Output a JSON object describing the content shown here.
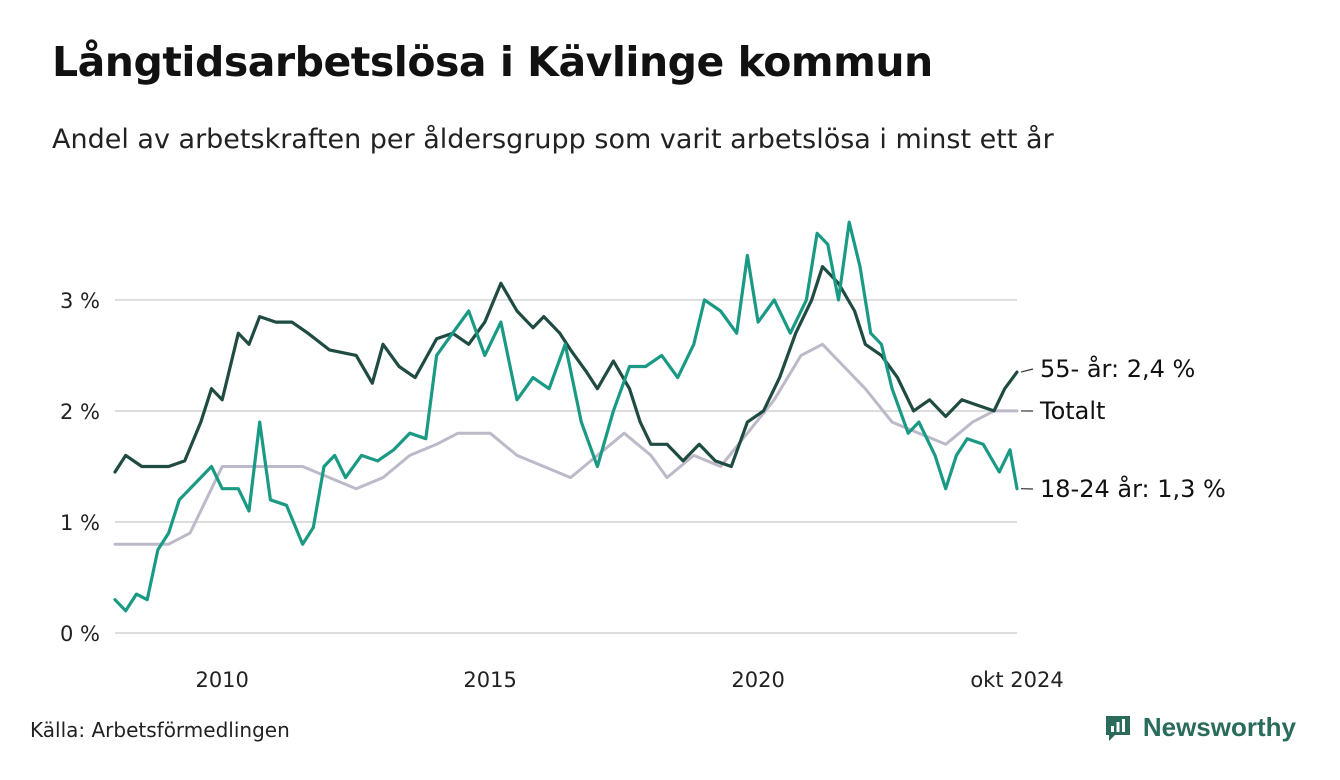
{
  "header": {
    "title": "Långtidsarbetslösa i Kävlinge kommun",
    "subtitle": "Andel av arbetskraften per åldersgrupp som varit arbetslösa i minst ett år"
  },
  "footer": {
    "source": "Källa: Arbetsförmedlingen",
    "brand": "Newsworthy"
  },
  "colors": {
    "age_55": "#1f4b43",
    "age_18_24": "#1a9a85",
    "total": "#bdb9c9",
    "grid": "#dddddd",
    "brand": "#2a6b5c"
  },
  "chart_data": {
    "type": "line",
    "x_unit": "year",
    "xlim": [
      2008.0,
      2024.83
    ],
    "ylim": [
      0,
      3.9
    ],
    "y_ticks": [
      0,
      1,
      2,
      3
    ],
    "y_tick_labels": [
      "0 %",
      "1 %",
      "2 %",
      "3 %"
    ],
    "x_ticks": [
      2010,
      2015,
      2020,
      2024.83
    ],
    "x_tick_labels": [
      "2010",
      "2015",
      "2020",
      "okt 2024"
    ],
    "grid": "horizontal",
    "series": [
      {
        "name": "Totalt",
        "end_label": "Totalt",
        "color_key": "total",
        "points": [
          [
            2008.0,
            0.8
          ],
          [
            2009.0,
            0.8
          ],
          [
            2009.4,
            0.9
          ],
          [
            2009.8,
            1.3
          ],
          [
            2010.0,
            1.5
          ],
          [
            2010.5,
            1.5
          ],
          [
            2011.5,
            1.5
          ],
          [
            2012.0,
            1.4
          ],
          [
            2012.5,
            1.3
          ],
          [
            2013.0,
            1.4
          ],
          [
            2013.5,
            1.6
          ],
          [
            2014.0,
            1.7
          ],
          [
            2014.4,
            1.8
          ],
          [
            2015.0,
            1.8
          ],
          [
            2015.5,
            1.6
          ],
          [
            2016.0,
            1.5
          ],
          [
            2016.5,
            1.4
          ],
          [
            2017.0,
            1.6
          ],
          [
            2017.5,
            1.8
          ],
          [
            2018.0,
            1.6
          ],
          [
            2018.3,
            1.4
          ],
          [
            2018.8,
            1.6
          ],
          [
            2019.3,
            1.5
          ],
          [
            2019.8,
            1.8
          ],
          [
            2020.3,
            2.1
          ],
          [
            2020.8,
            2.5
          ],
          [
            2021.2,
            2.6
          ],
          [
            2021.6,
            2.4
          ],
          [
            2022.0,
            2.2
          ],
          [
            2022.5,
            1.9
          ],
          [
            2023.0,
            1.8
          ],
          [
            2023.5,
            1.7
          ],
          [
            2024.0,
            1.9
          ],
          [
            2024.4,
            2.0
          ],
          [
            2024.83,
            2.0
          ]
        ]
      },
      {
        "name": "55- år",
        "end_label": "55- år: 2,4 %",
        "color_key": "age_55",
        "points": [
          [
            2008.0,
            1.45
          ],
          [
            2008.2,
            1.6
          ],
          [
            2008.5,
            1.5
          ],
          [
            2009.0,
            1.5
          ],
          [
            2009.3,
            1.55
          ],
          [
            2009.6,
            1.9
          ],
          [
            2009.8,
            2.2
          ],
          [
            2010.0,
            2.1
          ],
          [
            2010.3,
            2.7
          ],
          [
            2010.5,
            2.6
          ],
          [
            2010.7,
            2.85
          ],
          [
            2011.0,
            2.8
          ],
          [
            2011.3,
            2.8
          ],
          [
            2011.6,
            2.7
          ],
          [
            2012.0,
            2.55
          ],
          [
            2012.5,
            2.5
          ],
          [
            2012.8,
            2.25
          ],
          [
            2013.0,
            2.6
          ],
          [
            2013.3,
            2.4
          ],
          [
            2013.6,
            2.3
          ],
          [
            2014.0,
            2.65
          ],
          [
            2014.3,
            2.7
          ],
          [
            2014.6,
            2.6
          ],
          [
            2014.9,
            2.8
          ],
          [
            2015.2,
            3.15
          ],
          [
            2015.5,
            2.9
          ],
          [
            2015.8,
            2.75
          ],
          [
            2016.0,
            2.85
          ],
          [
            2016.3,
            2.7
          ],
          [
            2016.5,
            2.55
          ],
          [
            2016.8,
            2.35
          ],
          [
            2017.0,
            2.2
          ],
          [
            2017.3,
            2.45
          ],
          [
            2017.6,
            2.2
          ],
          [
            2017.8,
            1.9
          ],
          [
            2018.0,
            1.7
          ],
          [
            2018.3,
            1.7
          ],
          [
            2018.6,
            1.55
          ],
          [
            2018.9,
            1.7
          ],
          [
            2019.2,
            1.55
          ],
          [
            2019.5,
            1.5
          ],
          [
            2019.8,
            1.9
          ],
          [
            2020.1,
            2.0
          ],
          [
            2020.4,
            2.3
          ],
          [
            2020.7,
            2.7
          ],
          [
            2021.0,
            3.0
          ],
          [
            2021.2,
            3.3
          ],
          [
            2021.5,
            3.15
          ],
          [
            2021.8,
            2.9
          ],
          [
            2022.0,
            2.6
          ],
          [
            2022.3,
            2.5
          ],
          [
            2022.6,
            2.3
          ],
          [
            2022.9,
            2.0
          ],
          [
            2023.2,
            2.1
          ],
          [
            2023.5,
            1.95
          ],
          [
            2023.8,
            2.1
          ],
          [
            2024.1,
            2.05
          ],
          [
            2024.4,
            2.0
          ],
          [
            2024.6,
            2.2
          ],
          [
            2024.83,
            2.35
          ]
        ]
      },
      {
        "name": "18-24 år",
        "end_label": "18-24 år: 1,3 %",
        "color_key": "age_18_24",
        "points": [
          [
            2008.0,
            0.3
          ],
          [
            2008.2,
            0.2
          ],
          [
            2008.4,
            0.35
          ],
          [
            2008.6,
            0.3
          ],
          [
            2008.8,
            0.75
          ],
          [
            2009.0,
            0.9
          ],
          [
            2009.2,
            1.2
          ],
          [
            2009.5,
            1.35
          ],
          [
            2009.8,
            1.5
          ],
          [
            2010.0,
            1.3
          ],
          [
            2010.3,
            1.3
          ],
          [
            2010.5,
            1.1
          ],
          [
            2010.7,
            1.9
          ],
          [
            2010.9,
            1.2
          ],
          [
            2011.2,
            1.15
          ],
          [
            2011.5,
            0.8
          ],
          [
            2011.7,
            0.95
          ],
          [
            2011.9,
            1.5
          ],
          [
            2012.1,
            1.6
          ],
          [
            2012.3,
            1.4
          ],
          [
            2012.6,
            1.6
          ],
          [
            2012.9,
            1.55
          ],
          [
            2013.2,
            1.65
          ],
          [
            2013.5,
            1.8
          ],
          [
            2013.8,
            1.75
          ],
          [
            2014.0,
            2.5
          ],
          [
            2014.3,
            2.7
          ],
          [
            2014.6,
            2.9
          ],
          [
            2014.9,
            2.5
          ],
          [
            2015.2,
            2.8
          ],
          [
            2015.5,
            2.1
          ],
          [
            2015.8,
            2.3
          ],
          [
            2016.1,
            2.2
          ],
          [
            2016.4,
            2.6
          ],
          [
            2016.7,
            1.9
          ],
          [
            2017.0,
            1.5
          ],
          [
            2017.3,
            2.0
          ],
          [
            2017.6,
            2.4
          ],
          [
            2017.9,
            2.4
          ],
          [
            2018.2,
            2.5
          ],
          [
            2018.5,
            2.3
          ],
          [
            2018.8,
            2.6
          ],
          [
            2019.0,
            3.0
          ],
          [
            2019.3,
            2.9
          ],
          [
            2019.6,
            2.7
          ],
          [
            2019.8,
            3.4
          ],
          [
            2020.0,
            2.8
          ],
          [
            2020.3,
            3.0
          ],
          [
            2020.6,
            2.7
          ],
          [
            2020.9,
            3.0
          ],
          [
            2021.1,
            3.6
          ],
          [
            2021.3,
            3.5
          ],
          [
            2021.5,
            3.0
          ],
          [
            2021.7,
            3.7
          ],
          [
            2021.9,
            3.3
          ],
          [
            2022.1,
            2.7
          ],
          [
            2022.3,
            2.6
          ],
          [
            2022.5,
            2.2
          ],
          [
            2022.8,
            1.8
          ],
          [
            2023.0,
            1.9
          ],
          [
            2023.3,
            1.6
          ],
          [
            2023.5,
            1.3
          ],
          [
            2023.7,
            1.6
          ],
          [
            2023.9,
            1.75
          ],
          [
            2024.2,
            1.7
          ],
          [
            2024.5,
            1.45
          ],
          [
            2024.7,
            1.65
          ],
          [
            2024.83,
            1.3
          ]
        ]
      }
    ]
  }
}
